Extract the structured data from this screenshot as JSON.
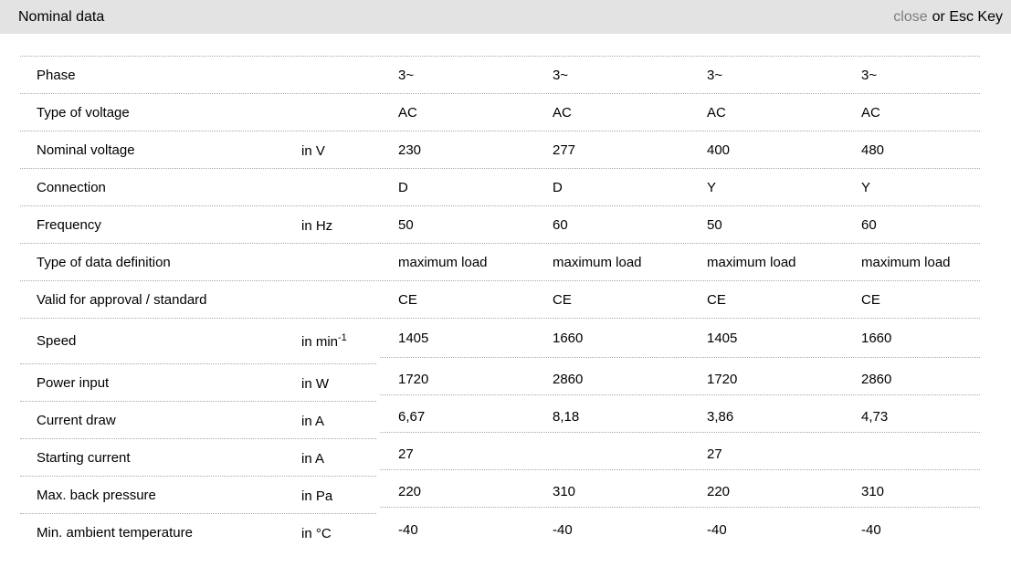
{
  "header": {
    "title": "Nominal data",
    "close_label": "close",
    "close_suffix": "or Esc Key"
  },
  "colors": {
    "header_bg": "#e3e3e3",
    "close_link": "#7d7d7d",
    "divider": "#a9a9a9",
    "text": "#000000"
  },
  "table": {
    "rows": [
      {
        "label": "Phase",
        "unit": "",
        "unit_sup": "",
        "values": [
          "3~",
          "3~",
          "3~",
          "3~"
        ],
        "section": "top"
      },
      {
        "label": "Type of voltage",
        "unit": "",
        "unit_sup": "",
        "values": [
          "AC",
          "AC",
          "AC",
          "AC"
        ],
        "section": "top"
      },
      {
        "label": "Nominal voltage",
        "unit": "in V",
        "unit_sup": "",
        "values": [
          "230",
          "277",
          "400",
          "480"
        ],
        "section": "top"
      },
      {
        "label": "Connection",
        "unit": "",
        "unit_sup": "",
        "values": [
          "D",
          "D",
          "Y",
          "Y"
        ],
        "section": "top"
      },
      {
        "label": "Frequency",
        "unit": "in Hz",
        "unit_sup": "",
        "values": [
          "50",
          "60",
          "50",
          "60"
        ],
        "section": "top"
      },
      {
        "label": "Type of data definition",
        "unit": "",
        "unit_sup": "",
        "values": [
          "maximum load",
          "maximum load",
          "maximum load",
          "maximum load"
        ],
        "section": "top"
      },
      {
        "label": "Valid for approval / standard",
        "unit": "",
        "unit_sup": "",
        "values": [
          "CE",
          "CE",
          "CE",
          "CE"
        ],
        "section": "top"
      },
      {
        "label": "Speed",
        "unit": "in min",
        "unit_sup": "-1",
        "values": [
          "1405",
          "1660",
          "1405",
          "1660"
        ],
        "section": "bottom",
        "tall": true
      },
      {
        "label": "Power input",
        "unit": "in W",
        "unit_sup": "",
        "values": [
          "1720",
          "2860",
          "1720",
          "2860"
        ],
        "section": "bottom"
      },
      {
        "label": "Current draw",
        "unit": "in A",
        "unit_sup": "",
        "values": [
          "6,67",
          "8,18",
          "3,86",
          "4,73"
        ],
        "section": "bottom"
      },
      {
        "label": "Starting current",
        "unit": "in A",
        "unit_sup": "",
        "values": [
          "27",
          "",
          "27",
          ""
        ],
        "section": "bottom"
      },
      {
        "label": "Max. back pressure",
        "unit": "in Pa",
        "unit_sup": "",
        "values": [
          "220",
          "310",
          "220",
          "310"
        ],
        "section": "bottom"
      },
      {
        "label": "Min. ambient temperature",
        "unit": "in °C",
        "unit_sup": "",
        "values": [
          "-40",
          "-40",
          "-40",
          "-40"
        ],
        "section": "bottom",
        "last": true
      }
    ]
  }
}
